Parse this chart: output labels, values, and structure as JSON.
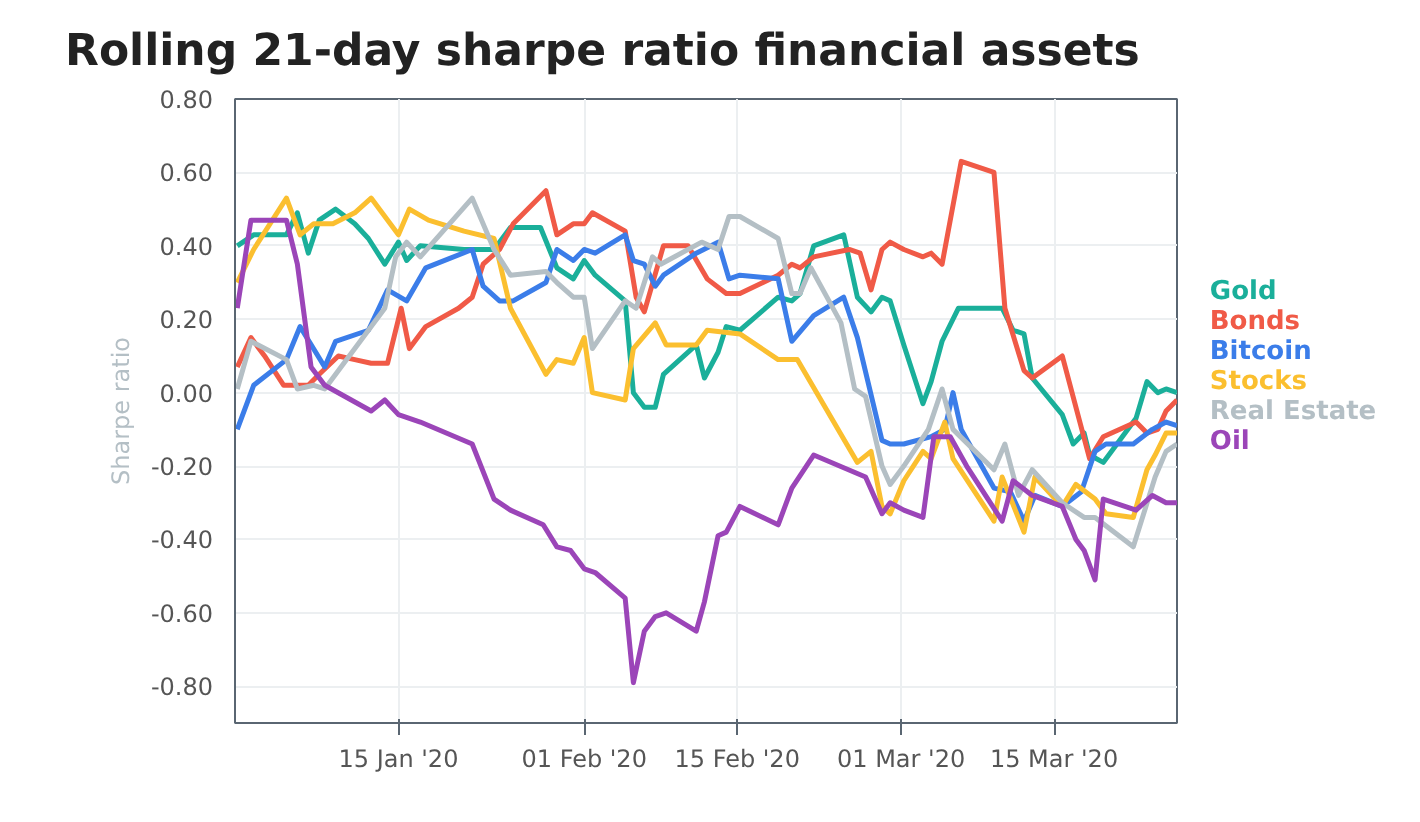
{
  "chart_data": {
    "type": "line",
    "title": "Rolling 21-day sharpe ratio financial assets",
    "ylabel": "Sharpe ratio",
    "legend": "right",
    "grid": true,
    "line_style": "solid",
    "xlim": [
      "2019-12-31T01:00",
      "2020-03-26T06:00"
    ],
    "ylim": [
      -0.9,
      0.8
    ],
    "xticks": [
      {
        "value": "2020-01-15",
        "label": "15 Jan '20"
      },
      {
        "value": "2020-02-01",
        "label": "01 Feb '20"
      },
      {
        "value": "2020-02-15",
        "label": "15 Feb '20"
      },
      {
        "value": "2020-03-01",
        "label": "01 Mar '20"
      },
      {
        "value": "2020-03-15",
        "label": "15 Mar '20"
      }
    ],
    "yticks": [
      {
        "value": 0.8,
        "label": "0.80"
      },
      {
        "value": 0.6,
        "label": "0.60"
      },
      {
        "value": 0.4,
        "label": "0.40"
      },
      {
        "value": 0.2,
        "label": "0.20"
      },
      {
        "value": 0,
        "label": "0.00"
      },
      {
        "value": -0.2,
        "label": "-0.20"
      },
      {
        "value": -0.4,
        "label": "-0.40"
      },
      {
        "value": -0.6,
        "label": "-0.60"
      },
      {
        "value": -0.8,
        "label": "-0.80"
      }
    ],
    "series": [
      {
        "name": "Gold",
        "color": "#1aaf9a",
        "x": [
          "2019-12-31T06:00",
          "2020-01-01T18:00",
          "2020-01-04T18:00",
          "2020-01-05T18:00",
          "2020-01-06T18:00",
          "2020-01-07T18:00",
          "2020-01-09T06:00",
          "2020-01-11T00:00",
          "2020-01-12T06:00",
          "2020-01-13T18:00",
          "2020-01-15T00:00",
          "2020-01-15T18:00",
          "2020-01-17T00:00",
          "2020-01-21T00:00",
          "2020-01-23T18:00",
          "2020-01-25T06:00",
          "2020-01-28T00:00",
          "2020-01-29T12:00",
          "2020-01-31T00:00",
          "2020-02-01T00:00",
          "2020-02-02T00:00",
          "2020-02-04T18:00",
          "2020-02-05T12:00",
          "2020-02-06T12:00",
          "2020-02-07T12:00",
          "2020-02-08T06:00",
          "2020-02-11T06:00",
          "2020-02-12T00:00",
          "2020-02-13T06:00",
          "2020-02-14T00:00",
          "2020-02-15T06:00",
          "2020-02-18T18:00",
          "2020-02-20T00:00",
          "2020-02-20T18:00",
          "2020-02-22T00:00",
          "2020-02-24T18:00",
          "2020-02-26T00:00",
          "2020-02-27T06:00",
          "2020-02-28T06:00",
          "2020-02-29T00:00",
          "2020-03-01T06:00",
          "2020-03-03T00:00",
          "2020-03-03T18:00",
          "2020-03-04T18:00",
          "2020-03-06T06:00",
          "2020-03-10T06:00",
          "2020-03-11T06:00",
          "2020-03-12T06:00",
          "2020-03-13T00:00",
          "2020-03-15T18:00",
          "2020-03-16T18:00",
          "2020-03-17T18:00",
          "2020-03-18T06:00",
          "2020-03-19T12:00",
          "2020-03-21T12:00",
          "2020-03-22T12:00",
          "2020-03-23T12:00",
          "2020-03-24T12:00",
          "2020-03-25T06:00",
          "2020-03-26T06:00"
        ],
        "values": [
          0.4,
          0.43,
          0.43,
          0.49,
          0.38,
          0.47,
          0.5,
          0.46,
          0.42,
          0.35,
          0.41,
          0.36,
          0.4,
          0.39,
          0.39,
          0.45,
          0.45,
          0.34,
          0.31,
          0.36,
          0.32,
          0.25,
          0,
          -0.04,
          -0.04,
          0.05,
          0.13,
          0.04,
          0.11,
          0.18,
          0.17,
          0.26,
          0.25,
          0.27,
          0.4,
          0.43,
          0.26,
          0.22,
          0.26,
          0.25,
          0.13,
          -0.03,
          0.03,
          0.14,
          0.23,
          0.23,
          0.17,
          0.16,
          0.04,
          -0.06,
          -0.14,
          -0.11,
          -0.17,
          -0.19,
          -0.11,
          -0.07,
          0.03,
          0,
          0.01,
          0
        ]
      },
      {
        "name": "Bonds",
        "color": "#f05a47",
        "x": [
          "2019-12-31T06:00",
          "2020-01-01T12:00",
          "2020-01-02T18:00",
          "2020-01-04T12:00",
          "2020-01-06T18:00",
          "2020-01-07T18:00",
          "2020-01-09T12:00",
          "2020-01-11T00:00",
          "2020-01-12T12:00",
          "2020-01-14T00:00",
          "2020-01-15T06:00",
          "2020-01-16T00:00",
          "2020-01-17T12:00",
          "2020-01-20T12:00",
          "2020-01-21T18:00",
          "2020-01-22T18:00",
          "2020-01-24T06:00",
          "2020-01-25T12:00",
          "2020-01-28T12:00",
          "2020-01-29T12:00",
          "2020-01-31T00:00",
          "2020-02-01T00:00",
          "2020-02-01T18:00",
          "2020-02-04T18:00",
          "2020-02-05T18:00",
          "2020-02-06T12:00",
          "2020-02-08T06:00",
          "2020-02-10T12:00",
          "2020-02-12T06:00",
          "2020-02-14T00:00",
          "2020-02-15T06:00",
          "2020-02-18T18:00",
          "2020-02-20T00:00",
          "2020-02-20T18:00",
          "2020-02-22T00:00",
          "2020-02-25T06:00",
          "2020-02-26T06:00",
          "2020-02-27T06:00",
          "2020-02-28T06:00",
          "2020-02-29T00:00",
          "2020-03-01T06:00",
          "2020-03-03T00:00",
          "2020-03-03T18:00",
          "2020-03-04T18:00",
          "2020-03-06T12:00",
          "2020-03-09T12:00",
          "2020-03-10T12:00",
          "2020-03-12T06:00",
          "2020-03-13T00:00",
          "2020-03-15T18:00",
          "2020-03-18T06:00",
          "2020-03-19T12:00",
          "2020-03-22T12:00",
          "2020-03-23T12:00",
          "2020-03-24T12:00",
          "2020-03-25T06:00",
          "2020-03-26T06:00"
        ],
        "values": [
          0.07,
          0.15,
          0.1,
          0.02,
          0.02,
          0.05,
          0.1,
          0.09,
          0.08,
          0.08,
          0.23,
          0.12,
          0.18,
          0.23,
          0.26,
          0.35,
          0.39,
          0.46,
          0.55,
          0.43,
          0.46,
          0.46,
          0.49,
          0.44,
          0.26,
          0.22,
          0.4,
          0.4,
          0.31,
          0.27,
          0.27,
          0.32,
          0.35,
          0.34,
          0.37,
          0.39,
          0.38,
          0.28,
          0.39,
          0.41,
          0.39,
          0.37,
          0.38,
          0.35,
          0.63,
          0.6,
          0.23,
          0.06,
          0.04,
          0.1,
          -0.18,
          -0.12,
          -0.08,
          -0.11,
          -0.1,
          -0.05,
          -0.02
        ]
      },
      {
        "name": "Bitcoin",
        "color": "#3b7de9",
        "x": [
          "2019-12-31T06:00",
          "2020-01-01T18:00",
          "2020-01-04T18:00",
          "2020-01-06T00:00",
          "2020-01-08T06:00",
          "2020-01-09T06:00",
          "2020-01-12T06:00",
          "2020-01-14T00:00",
          "2020-01-15T18:00",
          "2020-01-17T12:00",
          "2020-01-21T18:00",
          "2020-01-22T18:00",
          "2020-01-24T06:00",
          "2020-01-25T12:00",
          "2020-01-28T12:00",
          "2020-01-29T12:00",
          "2020-01-31T00:00",
          "2020-02-01T00:00",
          "2020-02-02T00:00",
          "2020-02-04T18:00",
          "2020-02-05T12:00",
          "2020-02-06T12:00",
          "2020-02-07T12:00",
          "2020-02-08T06:00",
          "2020-02-11T06:00",
          "2020-02-13T06:00",
          "2020-02-14T06:00",
          "2020-02-15T06:00",
          "2020-02-18T18:00",
          "2020-02-20T00:00",
          "2020-02-22T00:00",
          "2020-02-24T18:00",
          "2020-02-26T00:00",
          "2020-02-28T06:00",
          "2020-02-29T00:00",
          "2020-03-01T06:00",
          "2020-03-03T18:00",
          "2020-03-05T00:00",
          "2020-03-05T18:00",
          "2020-03-06T12:00",
          "2020-03-09T12:00",
          "2020-03-11T00:00",
          "2020-03-12T06:00",
          "2020-03-13T06:00",
          "2020-03-15T18:00",
          "2020-03-17T12:00",
          "2020-03-18T18:00",
          "2020-03-19T18:00",
          "2020-03-22T06:00",
          "2020-03-24T00:00",
          "2020-03-25T06:00",
          "2020-03-26T06:00"
        ],
        "values": [
          -0.1,
          0.02,
          0.09,
          0.18,
          0.07,
          0.14,
          0.17,
          0.28,
          0.25,
          0.34,
          0.39,
          0.29,
          0.25,
          0.25,
          0.3,
          0.39,
          0.36,
          0.39,
          0.38,
          0.43,
          0.36,
          0.35,
          0.29,
          0.32,
          0.38,
          0.41,
          0.31,
          0.32,
          0.31,
          0.14,
          0.21,
          0.26,
          0.15,
          -0.13,
          -0.14,
          -0.14,
          -0.12,
          -0.1,
          0.0,
          -0.1,
          -0.26,
          -0.27,
          -0.35,
          -0.28,
          -0.31,
          -0.27,
          -0.16,
          -0.14,
          -0.14,
          -0.1,
          -0.08,
          -0.09
        ]
      },
      {
        "name": "Stocks",
        "color": "#fbbf2f",
        "x": [
          "2019-12-31T06:00",
          "2020-01-01T18:00",
          "2020-01-04T18:00",
          "2020-01-06T00:00",
          "2020-01-07T06:00",
          "2020-01-09T00:00",
          "2020-01-11T00:00",
          "2020-01-12T12:00",
          "2020-01-15T00:00",
          "2020-01-16T00:00",
          "2020-01-17T18:00",
          "2020-01-21T00:00",
          "2020-01-23T18:00",
          "2020-01-25T06:00",
          "2020-01-28T12:00",
          "2020-01-29T12:00",
          "2020-01-31T00:00",
          "2020-02-01T00:00",
          "2020-02-01T18:00",
          "2020-02-04T18:00",
          "2020-02-05T12:00",
          "2020-02-07T12:00",
          "2020-02-08T12:00",
          "2020-02-11T06:00",
          "2020-02-12T06:00",
          "2020-02-15T06:00",
          "2020-02-18T18:00",
          "2020-02-20T12:00",
          "2020-02-26T00:00",
          "2020-02-27T06:00",
          "2020-02-28T06:00",
          "2020-02-29T00:00",
          "2020-03-01T06:00",
          "2020-03-03T00:00",
          "2020-03-03T18:00",
          "2020-03-05T00:00",
          "2020-03-05T18:00",
          "2020-03-09T12:00",
          "2020-03-10T06:00",
          "2020-03-12T06:00",
          "2020-03-13T06:00",
          "2020-03-15T18:00",
          "2020-03-17T00:00",
          "2020-03-18T18:00",
          "2020-03-19T18:00",
          "2020-03-22T06:00",
          "2020-03-23T12:00",
          "2020-03-24T06:00",
          "2020-03-25T06:00",
          "2020-03-26T06:00"
        ],
        "values": [
          0.3,
          0.39,
          0.53,
          0.43,
          0.46,
          0.46,
          0.49,
          0.53,
          0.43,
          0.5,
          0.47,
          0.44,
          0.42,
          0.23,
          0.05,
          0.09,
          0.08,
          0.15,
          0,
          -0.02,
          0.12,
          0.19,
          0.13,
          0.13,
          0.17,
          0.16,
          0.09,
          0.09,
          -0.19,
          -0.16,
          -0.31,
          -0.33,
          -0.24,
          -0.16,
          -0.18,
          -0.08,
          -0.18,
          -0.35,
          -0.23,
          -0.38,
          -0.23,
          -0.31,
          -0.25,
          -0.29,
          -0.33,
          -0.34,
          -0.21,
          -0.17,
          -0.11,
          -0.11
        ]
      },
      {
        "name": "Real Estate",
        "color": "#b4bfc5",
        "x": [
          "2019-12-31T06:00",
          "2020-01-01T12:00",
          "2020-01-04T18:00",
          "2020-01-05T18:00",
          "2020-01-07T06:00",
          "2020-01-08T06:00",
          "2020-01-12T06:00",
          "2020-01-13T18:00",
          "2020-01-14T18:00",
          "2020-01-15T18:00",
          "2020-01-17T00:00",
          "2020-01-21T18:00",
          "2020-01-23T18:00",
          "2020-01-25T06:00",
          "2020-01-28T12:00",
          "2020-01-29T12:00",
          "2020-01-31T00:00",
          "2020-02-01T00:00",
          "2020-02-01T18:00",
          "2020-02-04T18:00",
          "2020-02-05T18:00",
          "2020-02-07T06:00",
          "2020-02-08T00:00",
          "2020-02-11T18:00",
          "2020-02-13T06:00",
          "2020-02-14T06:00",
          "2020-02-15T06:00",
          "2020-02-18T18:00",
          "2020-02-20T00:00",
          "2020-02-20T18:00",
          "2020-02-21T18:00",
          "2020-02-24T12:00",
          "2020-02-25T18:00",
          "2020-02-26T18:00",
          "2020-02-28T06:00",
          "2020-02-29T00:00",
          "2020-03-01T06:00",
          "2020-03-03T12:00",
          "2020-03-04T18:00",
          "2020-03-05T18:00",
          "2020-03-09T12:00",
          "2020-03-10T12:00",
          "2020-03-11T18:00",
          "2020-03-13T00:00",
          "2020-03-15T18:00",
          "2020-03-17T18:00",
          "2020-03-18T18:00",
          "2020-03-22T06:00",
          "2020-03-24T06:00",
          "2020-03-25T06:00",
          "2020-03-26T06:00"
        ],
        "values": [
          0.01,
          0.14,
          0.09,
          0.01,
          0.02,
          0.01,
          0.17,
          0.23,
          0.37,
          0.41,
          0.37,
          0.53,
          0.39,
          0.32,
          0.33,
          0.3,
          0.26,
          0.26,
          0.12,
          0.25,
          0.23,
          0.37,
          0.35,
          0.41,
          0.39,
          0.48,
          0.48,
          0.42,
          0.27,
          0.27,
          0.34,
          0.19,
          0.01,
          -0.01,
          -0.2,
          -0.25,
          -0.2,
          -0.1,
          0.01,
          -0.1,
          -0.21,
          -0.14,
          -0.28,
          -0.21,
          -0.3,
          -0.34,
          -0.34,
          -0.42,
          -0.23,
          -0.16,
          -0.14
        ]
      },
      {
        "name": "Oil",
        "color": "#9b45b8",
        "x": [
          "2019-12-31T06:00",
          "2020-01-01T12:00",
          "2020-01-04T18:00",
          "2020-01-05T18:00",
          "2020-01-07T00:00",
          "2020-01-08T06:00",
          "2020-01-12T12:00",
          "2020-01-13T18:00",
          "2020-01-15T00:00",
          "2020-01-17T00:00",
          "2020-01-21T18:00",
          "2020-01-23T18:00",
          "2020-01-25T06:00",
          "2020-01-28T06:00",
          "2020-01-29T12:00",
          "2020-01-30T18:00",
          "2020-02-01T00:00",
          "2020-02-02T00:00",
          "2020-02-04T18:00",
          "2020-02-05T12:00",
          "2020-02-06T12:00",
          "2020-02-07T12:00",
          "2020-02-08T12:00",
          "2020-02-11T06:00",
          "2020-02-12T00:00",
          "2020-02-13T06:00",
          "2020-02-14T00:00",
          "2020-02-15T06:00",
          "2020-02-18T18:00",
          "2020-02-20T00:00",
          "2020-02-22T00:00",
          "2020-02-26T18:00",
          "2020-02-28T06:00",
          "2020-02-29T00:00",
          "2020-03-01T06:00",
          "2020-03-03T00:00",
          "2020-03-04T00:00",
          "2020-03-05T12:00",
          "2020-03-07T00:00",
          "2020-03-10T06:00",
          "2020-03-11T06:00",
          "2020-03-13T00:00",
          "2020-03-15T18:00",
          "2020-03-17T00:00",
          "2020-03-17T18:00",
          "2020-03-18T18:00",
          "2020-03-19T12:00",
          "2020-03-22T12:00",
          "2020-03-24T00:00",
          "2020-03-25T06:00",
          "2020-03-26T06:00"
        ],
        "values": [
          0.23,
          0.47,
          0.47,
          0.35,
          0.07,
          0.02,
          -0.05,
          -0.02,
          -0.06,
          -0.08,
          -0.14,
          -0.29,
          -0.32,
          -0.36,
          -0.42,
          -0.43,
          -0.48,
          -0.49,
          -0.56,
          -0.79,
          -0.65,
          -0.61,
          -0.6,
          -0.65,
          -0.57,
          -0.39,
          -0.38,
          -0.31,
          -0.36,
          -0.26,
          -0.17,
          -0.23,
          -0.33,
          -0.3,
          -0.32,
          -0.34,
          -0.12,
          -0.12,
          -0.2,
          -0.35,
          -0.24,
          -0.28,
          -0.31,
          -0.4,
          -0.43,
          -0.51,
          -0.29,
          -0.32,
          -0.28,
          -0.3,
          -0.3
        ]
      }
    ]
  }
}
